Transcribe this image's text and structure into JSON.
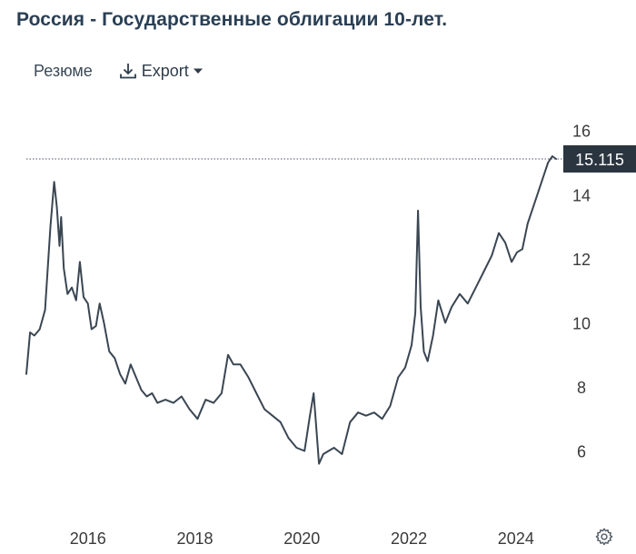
{
  "header": {
    "title": "Россия - Государственные облигации 10-лет."
  },
  "toolbar": {
    "summary_label": "Резюме",
    "export_label": "Export",
    "export_icon": "download-icon",
    "caret_icon": "caret-down-icon",
    "settings_icon": "gear-icon"
  },
  "colors": {
    "line": "#3a4652",
    "last_value_bg": "#2b3540",
    "last_value_text": "#ffffff",
    "axis_text": "#3a3a3a",
    "reference_line": "#4a5561"
  },
  "chart_data": {
    "type": "line",
    "title": "Россия - Государственные облигации 10-лет.",
    "xlabel": "",
    "ylabel": "",
    "xlim": [
      2014.85,
      2024.75
    ],
    "ylim": [
      4.2,
      16.9
    ],
    "x_ticks": [
      2016,
      2018,
      2020,
      2022,
      2024
    ],
    "x_tick_labels": [
      "2016",
      "2018",
      "2020",
      "2022",
      "2024"
    ],
    "y_ticks": [
      6,
      8,
      10,
      12,
      14,
      16
    ],
    "y_tick_labels": [
      "6",
      "8",
      "10",
      "12",
      "14",
      "16"
    ],
    "grid": false,
    "axis_side": "right",
    "last_value": 15.115,
    "last_value_label": "15.115",
    "series": [
      {
        "name": "",
        "x": [
          2014.85,
          2014.92,
          2015.0,
          2015.1,
          2015.2,
          2015.3,
          2015.37,
          2015.42,
          2015.47,
          2015.5,
          2015.55,
          2015.62,
          2015.7,
          2015.78,
          2015.85,
          2015.92,
          2016.0,
          2016.07,
          2016.15,
          2016.22,
          2016.3,
          2016.4,
          2016.5,
          2016.6,
          2016.7,
          2016.8,
          2016.9,
          2017.0,
          2017.1,
          2017.2,
          2017.3,
          2017.45,
          2017.6,
          2017.75,
          2017.9,
          2018.05,
          2018.2,
          2018.35,
          2018.5,
          2018.62,
          2018.72,
          2018.85,
          2019.0,
          2019.15,
          2019.3,
          2019.45,
          2019.6,
          2019.75,
          2019.9,
          2020.05,
          2020.15,
          2020.22,
          2020.27,
          2020.32,
          2020.4,
          2020.5,
          2020.6,
          2020.75,
          2020.9,
          2021.05,
          2021.2,
          2021.35,
          2021.5,
          2021.65,
          2021.8,
          2021.93,
          2022.05,
          2022.12,
          2022.17,
          2022.22,
          2022.28,
          2022.35,
          2022.45,
          2022.55,
          2022.68,
          2022.8,
          2022.95,
          2023.1,
          2023.25,
          2023.4,
          2023.55,
          2023.68,
          2023.8,
          2023.92,
          2024.02,
          2024.12,
          2024.22,
          2024.32,
          2024.42,
          2024.52,
          2024.6,
          2024.68,
          2024.75
        ],
        "y": [
          8.4,
          9.7,
          9.6,
          9.8,
          10.4,
          13.0,
          14.4,
          13.6,
          12.4,
          13.3,
          11.7,
          10.9,
          11.1,
          10.7,
          11.9,
          10.8,
          10.6,
          9.8,
          9.9,
          10.6,
          10.0,
          9.1,
          8.9,
          8.4,
          8.1,
          8.7,
          8.3,
          7.9,
          7.7,
          7.8,
          7.5,
          7.6,
          7.5,
          7.7,
          7.3,
          7.0,
          7.6,
          7.5,
          7.8,
          9.0,
          8.7,
          8.7,
          8.3,
          7.8,
          7.3,
          7.1,
          6.9,
          6.4,
          6.1,
          6.0,
          7.1,
          7.8,
          6.7,
          5.6,
          5.9,
          6.0,
          6.1,
          5.9,
          6.9,
          7.2,
          7.1,
          7.2,
          7.0,
          7.4,
          8.3,
          8.6,
          9.3,
          10.3,
          13.5,
          10.5,
          9.1,
          8.8,
          9.6,
          10.7,
          10.0,
          10.5,
          10.9,
          10.6,
          11.1,
          11.6,
          12.1,
          12.8,
          12.5,
          11.9,
          12.2,
          12.3,
          13.1,
          13.6,
          14.1,
          14.6,
          15.0,
          15.2,
          15.115
        ]
      }
    ]
  }
}
